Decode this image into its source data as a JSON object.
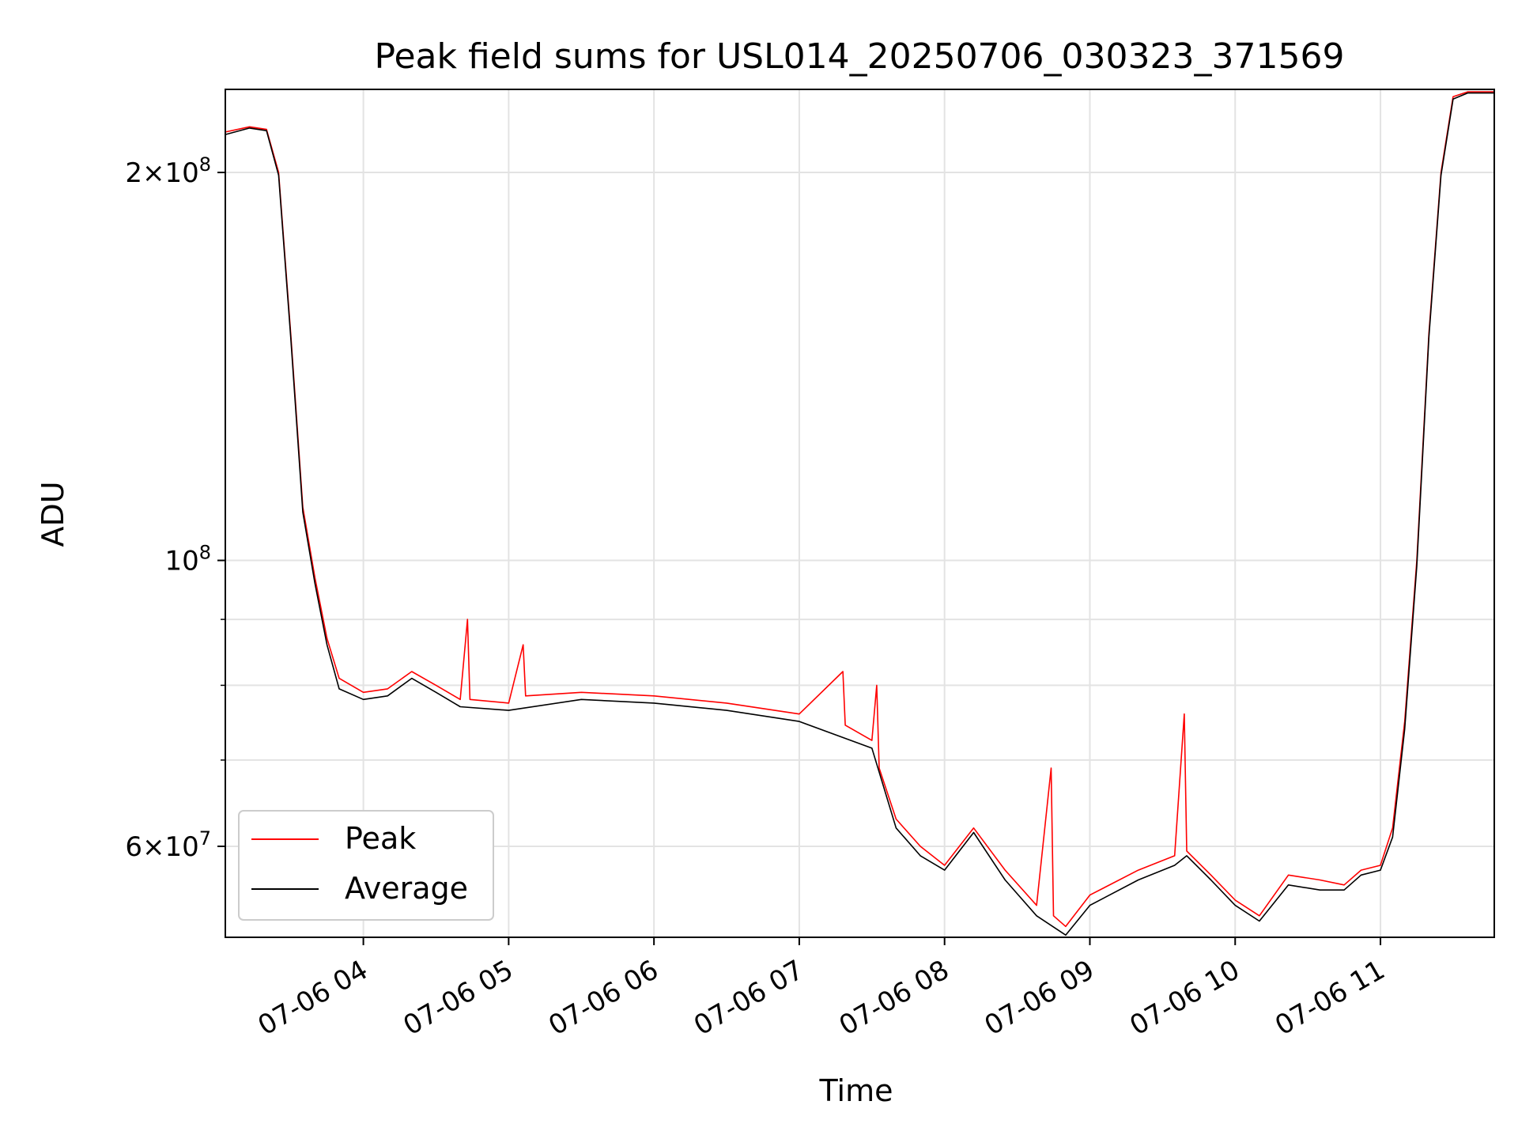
{
  "chart_data": {
    "type": "line",
    "title": "Peak field sums for USL014_20250706_030323_371569",
    "xlabel": "Time",
    "ylabel": "ADU",
    "y_scale": "log",
    "ylim": [
      51000000,
      232000000
    ],
    "xlim": [
      "2025-07-06 03:03",
      "2025-07-06 11:47"
    ],
    "grid": true,
    "legend_position": "lower left",
    "x_ticks": [
      {
        "t": "2025-07-06 04:00",
        "label": "07-06 04"
      },
      {
        "t": "2025-07-06 05:00",
        "label": "07-06 05"
      },
      {
        "t": "2025-07-06 06:00",
        "label": "07-06 06"
      },
      {
        "t": "2025-07-06 07:00",
        "label": "07-06 07"
      },
      {
        "t": "2025-07-06 08:00",
        "label": "07-06 08"
      },
      {
        "t": "2025-07-06 09:00",
        "label": "07-06 09"
      },
      {
        "t": "2025-07-06 10:00",
        "label": "07-06 10"
      },
      {
        "t": "2025-07-06 11:00",
        "label": "07-06 11"
      }
    ],
    "y_ticks_major": [
      {
        "v": 200000000,
        "mant": "2",
        "exp": "8"
      },
      {
        "v": 100000000,
        "mant": "",
        "exp": "8"
      },
      {
        "v": 60000000,
        "mant": "6",
        "exp": "7"
      }
    ],
    "y_ticks_minor": [
      70000000,
      80000000,
      90000000
    ],
    "series": [
      {
        "name": "Peak",
        "color": "#ff0000",
        "points": [
          [
            "2025-07-06 03:03",
            215000000
          ],
          [
            "2025-07-06 03:13",
            217000000
          ],
          [
            "2025-07-06 03:20",
            216000000
          ],
          [
            "2025-07-06 03:25",
            200000000
          ],
          [
            "2025-07-06 03:30",
            150000000
          ],
          [
            "2025-07-06 03:35",
            110000000
          ],
          [
            "2025-07-06 03:40",
            97000000
          ],
          [
            "2025-07-06 03:45",
            87000000
          ],
          [
            "2025-07-06 03:50",
            81000000
          ],
          [
            "2025-07-06 04:00",
            79000000
          ],
          [
            "2025-07-06 04:10",
            79500000
          ],
          [
            "2025-07-06 04:20",
            82000000
          ],
          [
            "2025-07-06 04:30",
            80000000
          ],
          [
            "2025-07-06 04:40",
            78000000
          ],
          [
            "2025-07-06 04:43",
            90000000
          ],
          [
            "2025-07-06 04:44",
            78000000
          ],
          [
            "2025-07-06 05:00",
            77500000
          ],
          [
            "2025-07-06 05:06",
            86000000
          ],
          [
            "2025-07-06 05:07",
            78500000
          ],
          [
            "2025-07-06 05:30",
            79000000
          ],
          [
            "2025-07-06 06:00",
            78500000
          ],
          [
            "2025-07-06 06:30",
            77500000
          ],
          [
            "2025-07-06 07:00",
            76000000
          ],
          [
            "2025-07-06 07:18",
            82000000
          ],
          [
            "2025-07-06 07:19",
            74500000
          ],
          [
            "2025-07-06 07:30",
            72500000
          ],
          [
            "2025-07-06 07:32",
            80000000
          ],
          [
            "2025-07-06 07:33",
            69000000
          ],
          [
            "2025-07-06 07:40",
            63000000
          ],
          [
            "2025-07-06 07:50",
            60000000
          ],
          [
            "2025-07-06 08:00",
            58000000
          ],
          [
            "2025-07-06 08:12",
            62000000
          ],
          [
            "2025-07-06 08:25",
            57500000
          ],
          [
            "2025-07-06 08:38",
            54000000
          ],
          [
            "2025-07-06 08:44",
            69000000
          ],
          [
            "2025-07-06 08:45",
            53000000
          ],
          [
            "2025-07-06 08:50",
            52000000
          ],
          [
            "2025-07-06 09:00",
            55000000
          ],
          [
            "2025-07-06 09:20",
            57500000
          ],
          [
            "2025-07-06 09:35",
            59000000
          ],
          [
            "2025-07-06 09:39",
            76000000
          ],
          [
            "2025-07-06 09:40",
            59500000
          ],
          [
            "2025-07-06 09:50",
            57000000
          ],
          [
            "2025-07-06 10:00",
            54500000
          ],
          [
            "2025-07-06 10:10",
            53000000
          ],
          [
            "2025-07-06 10:22",
            57000000
          ],
          [
            "2025-07-06 10:35",
            56500000
          ],
          [
            "2025-07-06 10:45",
            56000000
          ],
          [
            "2025-07-06 10:52",
            57500000
          ],
          [
            "2025-07-06 11:00",
            58000000
          ],
          [
            "2025-07-06 11:05",
            62000000
          ],
          [
            "2025-07-06 11:10",
            75000000
          ],
          [
            "2025-07-06 11:15",
            100000000
          ],
          [
            "2025-07-06 11:20",
            150000000
          ],
          [
            "2025-07-06 11:25",
            200000000
          ],
          [
            "2025-07-06 11:30",
            229000000
          ],
          [
            "2025-07-06 11:36",
            231000000
          ],
          [
            "2025-07-06 11:47",
            231000000
          ]
        ]
      },
      {
        "name": "Average",
        "color": "#000000",
        "points": [
          [
            "2025-07-06 03:03",
            214000000
          ],
          [
            "2025-07-06 03:13",
            216500000
          ],
          [
            "2025-07-06 03:20",
            215500000
          ],
          [
            "2025-07-06 03:25",
            199000000
          ],
          [
            "2025-07-06 03:30",
            149000000
          ],
          [
            "2025-07-06 03:35",
            109000000
          ],
          [
            "2025-07-06 03:40",
            96000000
          ],
          [
            "2025-07-06 03:45",
            86000000
          ],
          [
            "2025-07-06 03:50",
            79500000
          ],
          [
            "2025-07-06 04:00",
            78000000
          ],
          [
            "2025-07-06 04:10",
            78500000
          ],
          [
            "2025-07-06 04:20",
            81000000
          ],
          [
            "2025-07-06 04:30",
            79000000
          ],
          [
            "2025-07-06 04:40",
            77000000
          ],
          [
            "2025-07-06 05:00",
            76500000
          ],
          [
            "2025-07-06 05:30",
            78000000
          ],
          [
            "2025-07-06 06:00",
            77500000
          ],
          [
            "2025-07-06 06:30",
            76500000
          ],
          [
            "2025-07-06 07:00",
            75000000
          ],
          [
            "2025-07-06 07:30",
            71500000
          ],
          [
            "2025-07-06 07:33",
            68500000
          ],
          [
            "2025-07-06 07:40",
            62000000
          ],
          [
            "2025-07-06 07:50",
            59000000
          ],
          [
            "2025-07-06 08:00",
            57500000
          ],
          [
            "2025-07-06 08:12",
            61500000
          ],
          [
            "2025-07-06 08:25",
            56500000
          ],
          [
            "2025-07-06 08:38",
            53000000
          ],
          [
            "2025-07-06 08:50",
            51200000
          ],
          [
            "2025-07-06 09:00",
            54000000
          ],
          [
            "2025-07-06 09:20",
            56500000
          ],
          [
            "2025-07-06 09:35",
            58000000
          ],
          [
            "2025-07-06 09:40",
            59000000
          ],
          [
            "2025-07-06 09:50",
            56500000
          ],
          [
            "2025-07-06 10:00",
            54000000
          ],
          [
            "2025-07-06 10:10",
            52500000
          ],
          [
            "2025-07-06 10:22",
            56000000
          ],
          [
            "2025-07-06 10:35",
            55500000
          ],
          [
            "2025-07-06 10:45",
            55500000
          ],
          [
            "2025-07-06 10:52",
            57000000
          ],
          [
            "2025-07-06 11:00",
            57500000
          ],
          [
            "2025-07-06 11:05",
            61000000
          ],
          [
            "2025-07-06 11:10",
            74000000
          ],
          [
            "2025-07-06 11:15",
            99000000
          ],
          [
            "2025-07-06 11:20",
            149000000
          ],
          [
            "2025-07-06 11:25",
            199000000
          ],
          [
            "2025-07-06 11:30",
            228000000
          ],
          [
            "2025-07-06 11:36",
            230500000
          ],
          [
            "2025-07-06 11:47",
            230500000
          ]
        ]
      }
    ]
  }
}
